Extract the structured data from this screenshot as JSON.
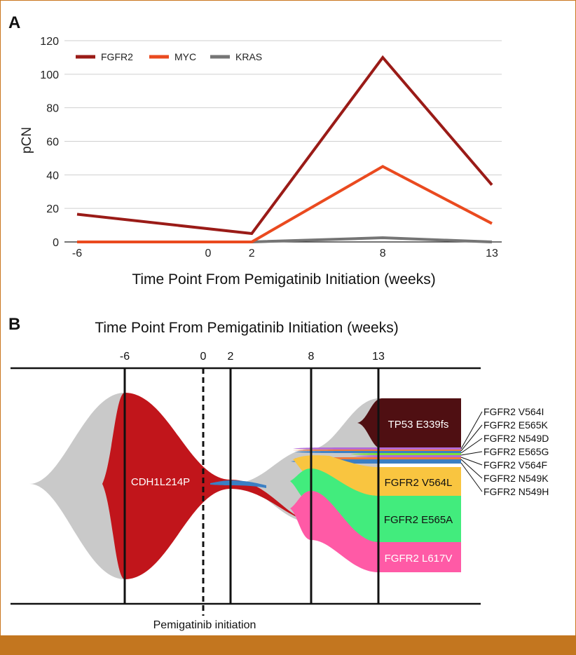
{
  "colors": {
    "fgfr2": "#9a1b17",
    "myc": "#ea4a1f",
    "kras": "#757575",
    "gray_clone": "#c9c9c9",
    "cdh1": "#c1151b",
    "tp53": "#4f0f12",
    "v564l": "#f9c540",
    "e565a": "#42ec7d",
    "l617v": "#ff5aa6",
    "thin_purple": "#b36ad6",
    "thin_green": "#7dde3a",
    "thin_blue": "#3b7fc4",
    "thin_orange": "#f07a3a",
    "frame": "#c3761f"
  },
  "panel_a": {
    "label": "A",
    "chart_data": {
      "type": "line",
      "x": [
        -6,
        2,
        8,
        13
      ],
      "xticks": [
        -6,
        0,
        2,
        8,
        13
      ],
      "xlim": [
        -6,
        13
      ],
      "ylim": [
        0,
        120
      ],
      "yticks": [
        0,
        20,
        40,
        60,
        80,
        100,
        120
      ],
      "ylabel": "pCN",
      "xlabel": "Time Point From Pemigatinib Initiation (weeks)",
      "grid": true,
      "legend_position": "top-left",
      "series": [
        {
          "name": "FGFR2",
          "key": "fgfr2",
          "values": [
            16.5,
            5,
            110,
            34
          ]
        },
        {
          "name": "MYC",
          "key": "myc",
          "values": [
            0,
            0,
            45,
            11
          ]
        },
        {
          "name": "KRAS",
          "key": "kras",
          "values": [
            0,
            0,
            2.5,
            0
          ]
        }
      ]
    }
  },
  "panel_b": {
    "label": "B",
    "chart_data": {
      "type": "fishplot",
      "title": "Time Point From Pemigatinib Initiation (weeks)",
      "timepoints": [
        -6,
        0,
        2,
        8,
        13
      ],
      "dashed_timepoint": 0,
      "annotation": "Pemigatinib initiation",
      "clones": [
        {
          "name": "CDH1L214P",
          "key": "cdh1",
          "label_visible": true
        },
        {
          "name": "TP53 E339fs",
          "key": "tp53",
          "label_visible": true
        },
        {
          "name": "FGFR2 V564L",
          "key": "v564l",
          "label_visible": true
        },
        {
          "name": "FGFR2 E565A",
          "key": "e565a",
          "label_visible": true
        },
        {
          "name": "FGFR2 L617V",
          "key": "l617v",
          "label_visible": true
        }
      ],
      "side_labels": [
        "FGFR2 V564I",
        "FGFR2 E565K",
        "FGFR2 N549D",
        "FGFR2 E565G",
        "FGFR2 V564F",
        "FGFR2 N549K",
        "FGFR2 N549H"
      ]
    }
  }
}
